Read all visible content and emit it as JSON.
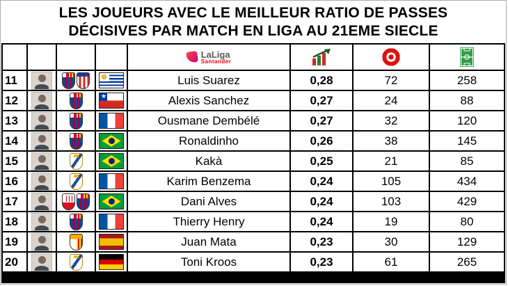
{
  "title": {
    "line1": "LES JOUEURS AVEC LE MEILLEUR RATIO DE PASSES",
    "line2": "DÉCISIVES PAR MATCH EN LIGA AU 21EME SIECLE"
  },
  "header": {
    "league_logo_text": "LaLiga",
    "league_logo_subtext": "Santander",
    "ratio_icon": "chart-increasing",
    "assists_icon": "target",
    "matches_icon": "football-pitch"
  },
  "columns": [
    "rank",
    "photo",
    "clubs",
    "nationality",
    "player",
    "assist_ratio_per_match",
    "assists",
    "matches"
  ],
  "rows": [
    {
      "rank": "11",
      "name": "Luis Suarez",
      "ratio": "0,28",
      "assists": "72",
      "matches": "258",
      "flag": "uruguay",
      "clubs": [
        "barcelona",
        "atletico-madrid"
      ]
    },
    {
      "rank": "12",
      "name": "Alexis Sanchez",
      "ratio": "0,27",
      "assists": "24",
      "matches": "88",
      "flag": "chile",
      "clubs": [
        "barcelona"
      ]
    },
    {
      "rank": "13",
      "name": "Ousmane Dembélé",
      "ratio": "0,27",
      "assists": "32",
      "matches": "120",
      "flag": "france",
      "clubs": [
        "barcelona"
      ]
    },
    {
      "rank": "14",
      "name": "Ronaldinho",
      "ratio": "0,26",
      "assists": "38",
      "matches": "145",
      "flag": "brazil",
      "clubs": [
        "barcelona"
      ]
    },
    {
      "rank": "15",
      "name": "Kakà",
      "ratio": "0,25",
      "assists": "21",
      "matches": "85",
      "flag": "brazil",
      "clubs": [
        "real-madrid"
      ]
    },
    {
      "rank": "16",
      "name": "Karim Benzema",
      "ratio": "0,24",
      "assists": "105",
      "matches": "434",
      "flag": "france",
      "clubs": [
        "real-madrid"
      ]
    },
    {
      "rank": "17",
      "name": "Dani Alves",
      "ratio": "0,24",
      "assists": "103",
      "matches": "429",
      "flag": "brazil",
      "clubs": [
        "sevilla",
        "barcelona"
      ]
    },
    {
      "rank": "18",
      "name": "Thierry Henry",
      "ratio": "0,24",
      "assists": "19",
      "matches": "80",
      "flag": "france",
      "clubs": [
        "barcelona"
      ]
    },
    {
      "rank": "19",
      "name": "Juan Mata",
      "ratio": "0,23",
      "assists": "30",
      "matches": "129",
      "flag": "spain",
      "clubs": [
        "valencia"
      ]
    },
    {
      "rank": "20",
      "name": "Toni Kroos",
      "ratio": "0,23",
      "assists": "61",
      "matches": "265",
      "flag": "germany",
      "clubs": [
        "real-madrid"
      ]
    }
  ],
  "colors": {
    "border": "#000000",
    "laliga_pink": "#c7017f",
    "santander_red": "#ec0000",
    "target_red": "#e01010",
    "pitch_green": "#2f9e44"
  }
}
